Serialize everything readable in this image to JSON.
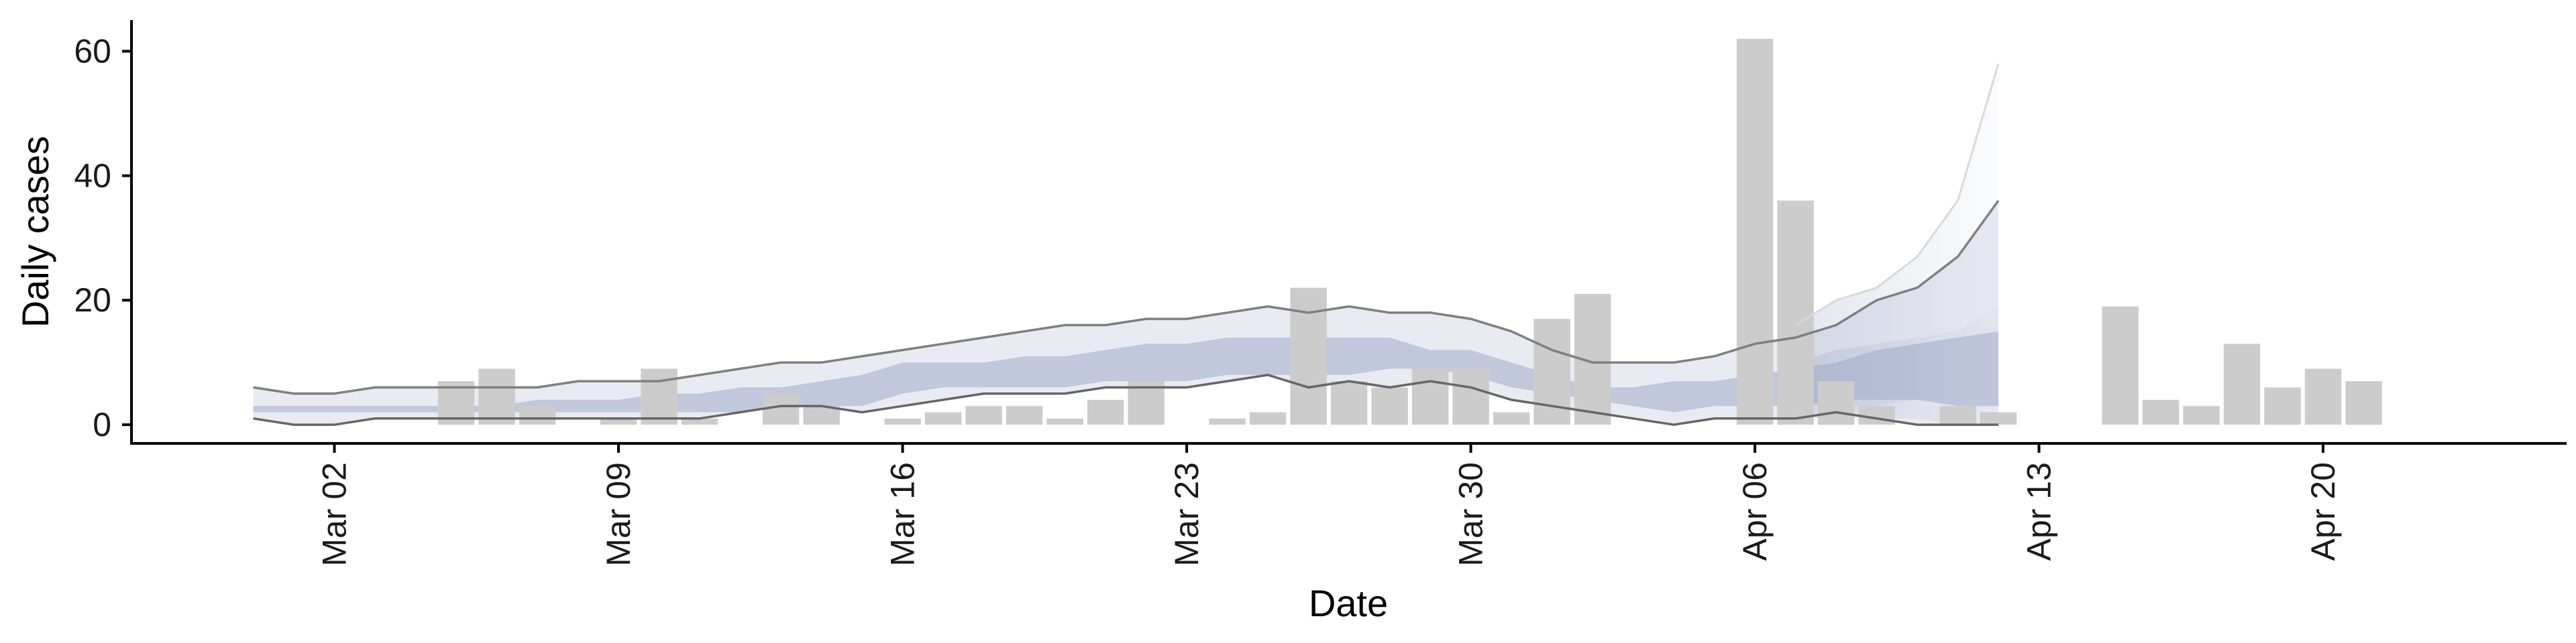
{
  "chart_data": {
    "type": "bar",
    "xlabel": "Date",
    "ylabel": "Daily cases",
    "ylim": [
      -3,
      65
    ],
    "xlim": [
      "2020-02-26",
      "2020-04-26"
    ],
    "grid": false,
    "x_ticks": [
      {
        "date": "2020-03-02",
        "label": "Mar 02"
      },
      {
        "date": "2020-03-09",
        "label": "Mar 09"
      },
      {
        "date": "2020-03-16",
        "label": "Mar 16"
      },
      {
        "date": "2020-03-23",
        "label": "Mar 23"
      },
      {
        "date": "2020-03-30",
        "label": "Mar 30"
      },
      {
        "date": "2020-04-06",
        "label": "Apr 06"
      },
      {
        "date": "2020-04-13",
        "label": "Apr 13"
      },
      {
        "date": "2020-04-20",
        "label": "Apr 20"
      }
    ],
    "y_ticks": [
      0,
      20,
      40,
      60
    ],
    "bar_color": "#cccccc",
    "band_color": "#9aa6c6",
    "line_color": "#7f7f7f",
    "observed_cases": [
      {
        "date": "2020-03-05",
        "value": 7
      },
      {
        "date": "2020-03-06",
        "value": 9
      },
      {
        "date": "2020-03-07",
        "value": 3
      },
      {
        "date": "2020-03-09",
        "value": 1
      },
      {
        "date": "2020-03-10",
        "value": 9
      },
      {
        "date": "2020-03-11",
        "value": 1
      },
      {
        "date": "2020-03-13",
        "value": 5
      },
      {
        "date": "2020-03-14",
        "value": 3
      },
      {
        "date": "2020-03-16",
        "value": 1
      },
      {
        "date": "2020-03-17",
        "value": 2
      },
      {
        "date": "2020-03-18",
        "value": 3
      },
      {
        "date": "2020-03-19",
        "value": 3
      },
      {
        "date": "2020-03-20",
        "value": 1
      },
      {
        "date": "2020-03-21",
        "value": 4
      },
      {
        "date": "2020-03-22",
        "value": 7
      },
      {
        "date": "2020-03-24",
        "value": 1
      },
      {
        "date": "2020-03-25",
        "value": 2
      },
      {
        "date": "2020-03-26",
        "value": 22
      },
      {
        "date": "2020-03-27",
        "value": 7
      },
      {
        "date": "2020-03-28",
        "value": 6
      },
      {
        "date": "2020-03-29",
        "value": 9
      },
      {
        "date": "2020-03-30",
        "value": 9
      },
      {
        "date": "2020-03-31",
        "value": 2
      },
      {
        "date": "2020-04-01",
        "value": 17
      },
      {
        "date": "2020-04-02",
        "value": 21
      },
      {
        "date": "2020-04-06",
        "value": 62
      },
      {
        "date": "2020-04-07",
        "value": 36
      },
      {
        "date": "2020-04-08",
        "value": 7
      },
      {
        "date": "2020-04-09",
        "value": 3
      },
      {
        "date": "2020-04-11",
        "value": 3
      },
      {
        "date": "2020-04-12",
        "value": 2
      },
      {
        "date": "2020-04-15",
        "value": 19
      },
      {
        "date": "2020-04-16",
        "value": 4
      },
      {
        "date": "2020-04-17",
        "value": 3
      },
      {
        "date": "2020-04-18",
        "value": 13
      },
      {
        "date": "2020-04-19",
        "value": 6
      },
      {
        "date": "2020-04-20",
        "value": 9
      },
      {
        "date": "2020-04-21",
        "value": 7
      }
    ],
    "estimate_dates": [
      "2020-02-29",
      "2020-03-01",
      "2020-03-02",
      "2020-03-03",
      "2020-03-04",
      "2020-03-05",
      "2020-03-06",
      "2020-03-07",
      "2020-03-08",
      "2020-03-09",
      "2020-03-10",
      "2020-03-11",
      "2020-03-12",
      "2020-03-13",
      "2020-03-14",
      "2020-03-15",
      "2020-03-16",
      "2020-03-17",
      "2020-03-18",
      "2020-03-19",
      "2020-03-20",
      "2020-03-21",
      "2020-03-22",
      "2020-03-23",
      "2020-03-24",
      "2020-03-25",
      "2020-03-26",
      "2020-03-27",
      "2020-03-28",
      "2020-03-29",
      "2020-03-30",
      "2020-03-31",
      "2020-04-01",
      "2020-04-02",
      "2020-04-03",
      "2020-04-04",
      "2020-04-05",
      "2020-04-06",
      "2020-04-07",
      "2020-04-08",
      "2020-04-09",
      "2020-04-10",
      "2020-04-11",
      "2020-04-12"
    ],
    "outer_upper": [
      6,
      5,
      5,
      6,
      6,
      6,
      6,
      6,
      7,
      7,
      7,
      8,
      9,
      10,
      10,
      11,
      12,
      13,
      14,
      15,
      16,
      16,
      17,
      17,
      18,
      19,
      18,
      19,
      18,
      18,
      17,
      15,
      12,
      10,
      10,
      10,
      11,
      13,
      14,
      16,
      20,
      22,
      27,
      36
    ],
    "outer_lower": [
      1,
      0,
      0,
      1,
      1,
      1,
      1,
      1,
      1,
      1,
      1,
      1,
      2,
      3,
      3,
      2,
      3,
      4,
      5,
      5,
      5,
      6,
      6,
      6,
      7,
      8,
      6,
      7,
      6,
      7,
      6,
      4,
      3,
      2,
      1,
      0,
      1,
      1,
      1,
      2,
      1,
      0,
      0,
      0
    ],
    "inner_upper": [
      3,
      3,
      3,
      3,
      3,
      3,
      3,
      4,
      4,
      4,
      5,
      5,
      6,
      6,
      7,
      8,
      10,
      10,
      10,
      11,
      11,
      12,
      13,
      13,
      14,
      14,
      14,
      14,
      14,
      12,
      12,
      10,
      8,
      6,
      6,
      7,
      7,
      8,
      9,
      10,
      12,
      13,
      14,
      15
    ],
    "inner_lower": [
      2,
      2,
      2,
      2,
      2,
      2,
      2,
      2,
      2,
      2,
      2,
      2,
      2,
      3,
      3,
      3,
      5,
      6,
      6,
      6,
      6,
      7,
      7,
      7,
      8,
      8,
      8,
      8,
      9,
      9,
      8,
      6,
      5,
      4,
      3,
      2,
      3,
      3,
      3,
      4,
      4,
      4,
      3,
      3
    ],
    "forecast_dates": [
      "2020-04-07",
      "2020-04-08",
      "2020-04-09",
      "2020-04-10",
      "2020-04-11",
      "2020-04-12"
    ],
    "forecast_upper": [
      16,
      20,
      22,
      27,
      36,
      58
    ],
    "forecast_lower": [
      1,
      1,
      1,
      1,
      0,
      0
    ],
    "forecast_inner_upper": [
      10,
      12,
      13,
      14,
      15,
      19
    ],
    "forecast_inner_lower": [
      3,
      3,
      3,
      4,
      4,
      4
    ]
  }
}
